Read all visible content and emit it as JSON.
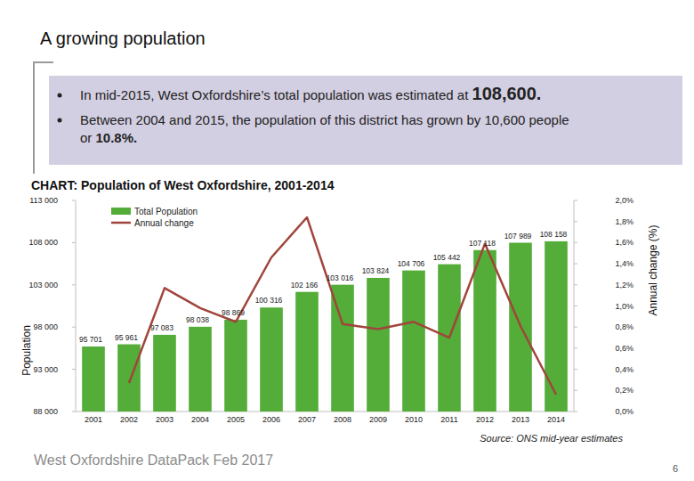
{
  "page": {
    "heading": "A growing population",
    "bullets": [
      {
        "before": [
          "In mid-2015, West Oxfordshire’s total population was estimated at "
        ],
        "strong": "108,600."
      },
      {
        "before": [
          "Between 2004 and 2015, the population of this district has grown by 10,600  people",
          "or "
        ],
        "strong": "10.8%."
      }
    ],
    "source": "Source: ONS mid-year estimates",
    "footer": "West Oxfordshire DataPack Feb 2017",
    "page_number": "6"
  },
  "chart_data": {
    "type": "bar",
    "title": "CHART: Population of West Oxfordshire, 2001-2014",
    "y_label": "Population",
    "y2_label": "Annual change (%)",
    "categories": [
      "2001",
      "2002",
      "2003",
      "2004",
      "2005",
      "2006",
      "2007",
      "2008",
      "2009",
      "2010",
      "2011",
      "2012",
      "2013",
      "2014"
    ],
    "series": [
      {
        "name": "Total Population",
        "type": "bar",
        "color": "#53ad38",
        "values": [
          95701,
          95961,
          97083,
          98038,
          98869,
          100316,
          102166,
          103016,
          103824,
          104706,
          105442,
          107118,
          107989,
          108158
        ],
        "value_labels": [
          "95 701",
          "95 961",
          "97 083",
          "98 038",
          "98 869",
          "100 316",
          "102 166",
          "103 016",
          "103 824",
          "104 706",
          "105 442",
          "107 118",
          "107 989",
          "108 158"
        ],
        "data_labels": true
      },
      {
        "name": "Annual change",
        "type": "line",
        "color": "#a0453b",
        "axis": "y2",
        "marker": "none",
        "line_style": "solid",
        "values": [
          null,
          0.27,
          1.17,
          0.98,
          0.85,
          1.46,
          1.84,
          0.83,
          0.78,
          0.85,
          0.7,
          1.59,
          0.81,
          0.16
        ]
      }
    ],
    "ylim": [
      88000,
      113000
    ],
    "yticks": [
      {
        "value": 88000,
        "label": "88 000"
      },
      {
        "value": 93000,
        "label": "93 000"
      },
      {
        "value": 98000,
        "label": "98 000"
      },
      {
        "value": 103000,
        "label": "103 000"
      },
      {
        "value": 108000,
        "label": "108 000"
      },
      {
        "value": 113000,
        "label": "113 000"
      }
    ],
    "y2lim": [
      0,
      2.0
    ],
    "y2ticks": [
      {
        "value": 0,
        "label": "0,0%"
      },
      {
        "value": 0.2,
        "label": "0,2%"
      },
      {
        "value": 0.4,
        "label": "0,4%"
      },
      {
        "value": 0.6,
        "label": "0,6%"
      },
      {
        "value": 0.8,
        "label": "0,8%"
      },
      {
        "value": 1.0,
        "label": "1,0%"
      },
      {
        "value": 1.2,
        "label": "1,2%"
      },
      {
        "value": 1.4,
        "label": "1,4%"
      },
      {
        "value": 1.6,
        "label": "1,6%"
      },
      {
        "value": 1.8,
        "label": "1,8%"
      },
      {
        "value": 2.0,
        "label": "2,0%"
      }
    ],
    "grid": false,
    "legend": "upper left"
  }
}
